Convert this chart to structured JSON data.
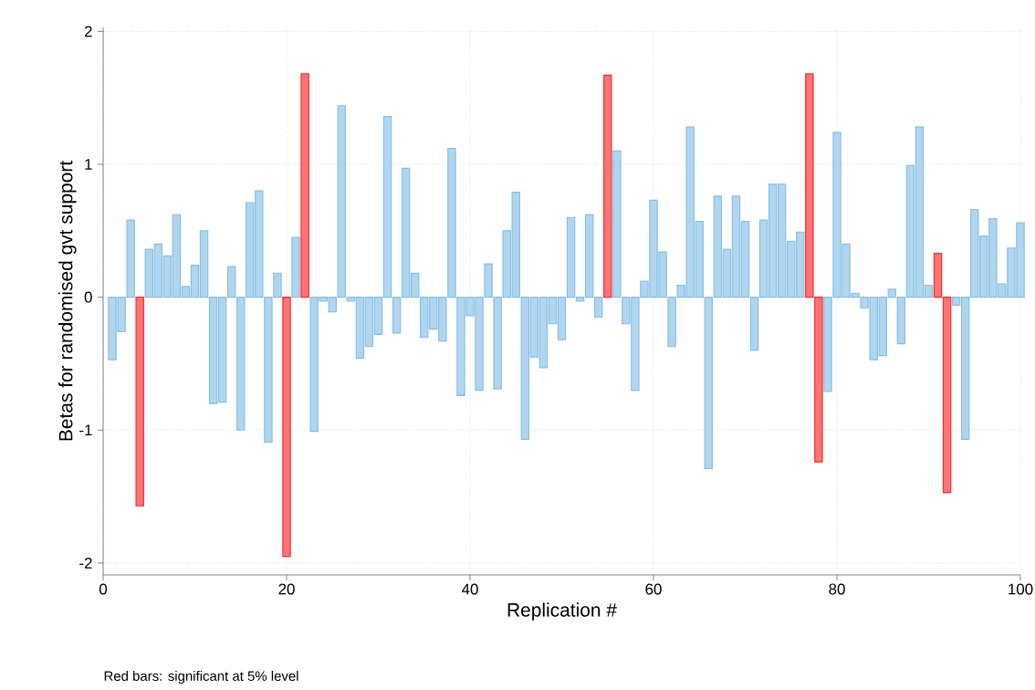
{
  "chart_data": {
    "type": "bar",
    "xlabel": "Replication #",
    "ylabel": "Betas for randomised gvt support",
    "annotations": [
      "Red bars: significant at 5% level"
    ],
    "x": [
      1,
      2,
      3,
      4,
      5,
      6,
      7,
      8,
      9,
      10,
      11,
      12,
      13,
      14,
      15,
      16,
      17,
      18,
      19,
      20,
      21,
      22,
      23,
      24,
      25,
      26,
      27,
      28,
      29,
      30,
      31,
      32,
      33,
      34,
      35,
      36,
      37,
      38,
      39,
      40,
      41,
      42,
      43,
      44,
      45,
      46,
      47,
      48,
      49,
      50,
      51,
      52,
      53,
      54,
      55,
      56,
      57,
      58,
      59,
      60,
      61,
      62,
      63,
      64,
      65,
      66,
      67,
      68,
      69,
      70,
      71,
      72,
      73,
      74,
      75,
      76,
      77,
      78,
      79,
      80,
      81,
      82,
      83,
      84,
      85,
      86,
      87,
      88,
      89,
      90,
      91,
      92,
      93,
      94,
      95,
      96,
      97,
      98,
      99,
      100
    ],
    "values": [
      -0.47,
      -0.26,
      0.58,
      -1.57,
      0.36,
      0.4,
      0.31,
      0.62,
      0.08,
      0.24,
      0.5,
      -0.8,
      -0.79,
      0.23,
      -1.0,
      0.71,
      0.8,
      -1.09,
      0.18,
      -1.95,
      0.45,
      1.68,
      -1.01,
      -0.03,
      -0.11,
      1.44,
      -0.03,
      -0.46,
      -0.37,
      -0.28,
      1.36,
      -0.27,
      0.97,
      0.18,
      -0.3,
      -0.24,
      -0.33,
      1.12,
      -0.74,
      -0.14,
      -0.7,
      0.25,
      -0.69,
      0.5,
      0.79,
      -1.07,
      -0.45,
      -0.53,
      -0.2,
      -0.32,
      0.6,
      -0.03,
      0.62,
      -0.15,
      1.67,
      1.1,
      -0.2,
      -0.7,
      0.12,
      0.73,
      0.34,
      -0.37,
      0.09,
      1.28,
      0.57,
      -1.29,
      0.76,
      0.36,
      0.76,
      0.57,
      -0.4,
      0.58,
      0.85,
      0.85,
      0.42,
      0.49,
      1.68,
      -1.24,
      -0.71,
      1.24,
      0.4,
      0.03,
      -0.08,
      -0.47,
      -0.44,
      0.06,
      -0.35,
      0.99,
      1.28,
      0.09,
      0.33,
      -1.47,
      -0.06,
      -1.07,
      0.66,
      0.46,
      0.59,
      0.1,
      0.37,
      0.56
    ],
    "colors": [
      "#85c0e6",
      "#85c0e6",
      "#85c0e6",
      "#ff2a2a",
      "#85c0e6",
      "#85c0e6",
      "#85c0e6",
      "#85c0e6",
      "#85c0e6",
      "#85c0e6",
      "#85c0e6",
      "#85c0e6",
      "#85c0e6",
      "#85c0e6",
      "#85c0e6",
      "#85c0e6",
      "#85c0e6",
      "#85c0e6",
      "#85c0e6",
      "#ff2a2a",
      "#85c0e6",
      "#ff2a2a",
      "#85c0e6",
      "#85c0e6",
      "#85c0e6",
      "#85c0e6",
      "#85c0e6",
      "#85c0e6",
      "#85c0e6",
      "#85c0e6",
      "#85c0e6",
      "#85c0e6",
      "#85c0e6",
      "#85c0e6",
      "#85c0e6",
      "#85c0e6",
      "#85c0e6",
      "#85c0e6",
      "#85c0e6",
      "#85c0e6",
      "#85c0e6",
      "#85c0e6",
      "#85c0e6",
      "#85c0e6",
      "#85c0e6",
      "#85c0e6",
      "#85c0e6",
      "#85c0e6",
      "#85c0e6",
      "#85c0e6",
      "#85c0e6",
      "#85c0e6",
      "#85c0e6",
      "#85c0e6",
      "#ff2a2a",
      "#85c0e6",
      "#85c0e6",
      "#85c0e6",
      "#85c0e6",
      "#85c0e6",
      "#85c0e6",
      "#85c0e6",
      "#85c0e6",
      "#85c0e6",
      "#85c0e6",
      "#85c0e6",
      "#85c0e6",
      "#85c0e6",
      "#85c0e6",
      "#85c0e6",
      "#85c0e6",
      "#85c0e6",
      "#85c0e6",
      "#85c0e6",
      "#85c0e6",
      "#85c0e6",
      "#ff2a2a",
      "#ff2a2a",
      "#85c0e6",
      "#85c0e6",
      "#85c0e6",
      "#85c0e6",
      "#85c0e6",
      "#85c0e6",
      "#85c0e6",
      "#85c0e6",
      "#85c0e6",
      "#85c0e6",
      "#85c0e6",
      "#85c0e6",
      "#ff2a2a",
      "#ff2a2a",
      "#85c0e6",
      "#85c0e6",
      "#85c0e6",
      "#85c0e6",
      "#85c0e6",
      "#85c0e6",
      "#85c0e6",
      "#85c0e6"
    ],
    "xlim": [
      0,
      100
    ],
    "ylim": [
      -2.09,
      2.03
    ],
    "xticks": [
      0,
      20,
      40,
      60,
      80,
      100
    ],
    "yticks": [
      -2,
      -1,
      0,
      1,
      2
    ],
    "grid": true
  }
}
